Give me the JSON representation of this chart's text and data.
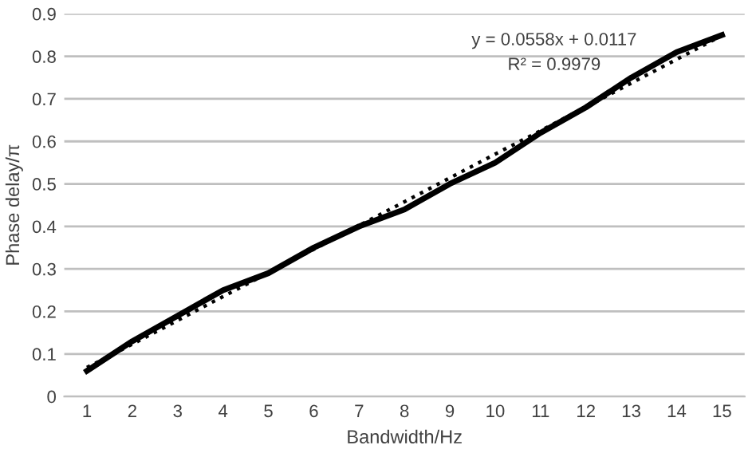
{
  "chart_data": {
    "type": "line",
    "xlabel": "Bandwidth/Hz",
    "ylabel": "Phase delay/π",
    "categories": [
      "1",
      "2",
      "3",
      "4",
      "5",
      "6",
      "7",
      "8",
      "9",
      "10",
      "11",
      "12",
      "13",
      "14",
      "15"
    ],
    "series": [
      {
        "color": "#000000",
        "line_style": "solid",
        "values": [
          0.06,
          0.13,
          0.19,
          0.25,
          0.29,
          0.35,
          0.4,
          0.44,
          0.5,
          0.55,
          0.62,
          0.68,
          0.75,
          0.81,
          0.85
        ]
      },
      {
        "color": "#000000",
        "line_style": "dotted",
        "values": [
          0.068,
          0.123,
          0.179,
          0.235,
          0.291,
          0.346,
          0.402,
          0.458,
          0.514,
          0.57,
          0.625,
          0.681,
          0.737,
          0.793,
          0.849
        ]
      }
    ],
    "ylim": [
      0,
      0.9
    ],
    "yticks": [
      0,
      0.1,
      0.2,
      0.3,
      0.4,
      0.5,
      0.6,
      0.7,
      0.8,
      0.9
    ],
    "grid": "y",
    "legend": false,
    "marker": "none",
    "annotations": [
      "y = 0.0558x + 0.0117",
      "R² = 0.9979"
    ]
  }
}
